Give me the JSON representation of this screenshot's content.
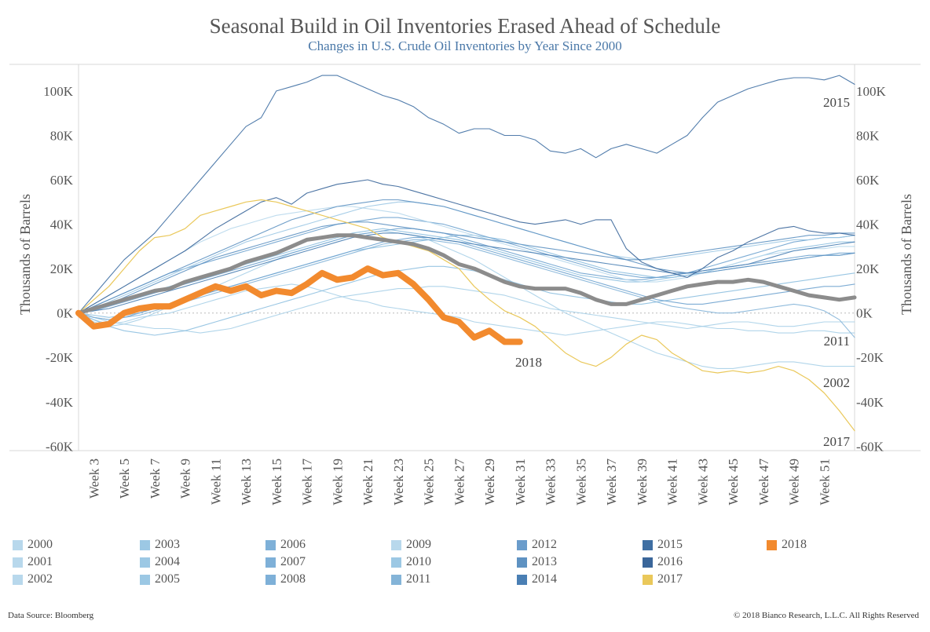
{
  "title": "Seasonal Build in Oil Inventories Erased Ahead of Schedule",
  "subtitle": "Changes in U.S. Crude Oil Inventories by Year Since 2000",
  "footer": {
    "source": "Data Source: Bloomberg",
    "copyright": "© 2018 Bianco Research, L.L.C. All Rights Reserved"
  },
  "chart_data": {
    "type": "line",
    "ylabel_left": "Thousands of Barrels",
    "ylabel_right": "Thousands of Barrels",
    "ylim": [
      -62,
      112
    ],
    "y_ticks": [
      100,
      80,
      60,
      40,
      20,
      0,
      -20,
      -40,
      -60
    ],
    "y_tick_labels": [
      "100K",
      "80K",
      "60K",
      "40K",
      "20K",
      "0K",
      "-20K",
      "-40K",
      "-60K"
    ],
    "xlim": [
      2,
      53
    ],
    "x_ticks": [
      3,
      5,
      7,
      9,
      11,
      13,
      15,
      17,
      19,
      21,
      23,
      25,
      27,
      29,
      31,
      33,
      35,
      37,
      39,
      41,
      43,
      45,
      47,
      49,
      51
    ],
    "x_tick_labels": [
      "Week 3",
      "Week 5",
      "Week 7",
      "Week 9",
      "Week 11",
      "Week 13",
      "Week 15",
      "Week 17",
      "Week 19",
      "Week 21",
      "Week 23",
      "Week 25",
      "Week 27",
      "Week 29",
      "Week 31",
      "Week 33",
      "Week 35",
      "Week 37",
      "Week 39",
      "Week 41",
      "Week 43",
      "Week 45",
      "Week 47",
      "Week 49",
      "Week 51"
    ],
    "grid": false,
    "zero_line": true,
    "series": [
      {
        "name": "2000",
        "color": "#a8d0e8",
        "start": 2,
        "values": [
          0,
          -3,
          -5,
          -4,
          -2,
          -1,
          0,
          2,
          4,
          6,
          8,
          10,
          11,
          12,
          13,
          12,
          10,
          8,
          6,
          5,
          3,
          2,
          1,
          0,
          -1,
          -2,
          -4,
          -5,
          -6,
          -7,
          -8,
          -9,
          -10,
          -9,
          -8,
          -7,
          -6,
          -5,
          -4,
          -4,
          -5,
          -6,
          -7,
          -7,
          -8,
          -8,
          -9,
          -9,
          -8,
          -8,
          -9,
          -9
        ]
      },
      {
        "name": "2001",
        "color": "#a8d0e8",
        "start": 2,
        "values": [
          0,
          -2,
          -4,
          -5,
          -6,
          -7,
          -7,
          -8,
          -9,
          -8,
          -7,
          -5,
          -3,
          -1,
          1,
          3,
          5,
          7,
          8,
          9,
          10,
          11,
          11,
          12,
          12,
          11,
          10,
          9,
          8,
          6,
          4,
          2,
          1,
          0,
          -1,
          -2,
          -3,
          -4,
          -5,
          -6,
          -7,
          -6,
          -5,
          -4,
          -4,
          -5,
          -6,
          -6,
          -5,
          -4,
          -4,
          -4
        ]
      },
      {
        "name": "2002",
        "color": "#a8d0e8",
        "start": 2,
        "values": [
          0,
          -4,
          -6,
          -5,
          -3,
          0,
          3,
          6,
          9,
          12,
          15,
          18,
          21,
          24,
          27,
          29,
          31,
          33,
          35,
          36,
          37,
          36,
          35,
          33,
          30,
          27,
          24,
          20,
          16,
          12,
          8,
          4,
          0,
          -3,
          -6,
          -9,
          -12,
          -15,
          -18,
          -20,
          -22,
          -24,
          -25,
          -25,
          -24,
          -23,
          -22,
          -22,
          -23,
          -24,
          -24,
          -24
        ]
      },
      {
        "name": "2003",
        "color": "#8ec0e0",
        "start": 2,
        "values": [
          0,
          -3,
          -6,
          -8,
          -9,
          -10,
          -9,
          -8,
          -6,
          -4,
          -2,
          0,
          2,
          4,
          6,
          8,
          10,
          12,
          14,
          16,
          18,
          19,
          20,
          21,
          21,
          20,
          19,
          17,
          15,
          13,
          11,
          9,
          8,
          7,
          6,
          5,
          4,
          4,
          5,
          6,
          7,
          8,
          9,
          10,
          11,
          12,
          13,
          14,
          15,
          16,
          17,
          18
        ]
      },
      {
        "name": "2004",
        "color": "#8ec0e0",
        "start": 2,
        "values": [
          0,
          -1,
          -2,
          -1,
          0,
          2,
          4,
          6,
          8,
          10,
          12,
          14,
          16,
          18,
          20,
          22,
          24,
          26,
          28,
          29,
          30,
          31,
          32,
          33,
          34,
          35,
          35,
          34,
          33,
          31,
          29,
          27,
          25,
          23,
          21,
          19,
          18,
          17,
          16,
          16,
          17,
          18,
          20,
          22,
          24,
          26,
          28,
          29,
          30,
          31,
          32,
          32
        ]
      },
      {
        "name": "2005",
        "color": "#8ec0e0",
        "start": 2,
        "values": [
          0,
          2,
          4,
          6,
          8,
          10,
          12,
          14,
          16,
          18,
          20,
          22,
          24,
          26,
          28,
          30,
          32,
          34,
          36,
          37,
          38,
          37,
          36,
          35,
          34,
          33,
          31,
          29,
          27,
          25,
          23,
          21,
          19,
          17,
          16,
          15,
          14,
          14,
          15,
          16,
          17,
          18,
          19,
          20,
          21,
          22,
          23,
          24,
          25,
          26,
          26,
          27
        ]
      },
      {
        "name": "2006",
        "color": "#6fa3cf",
        "start": 2,
        "values": [
          0,
          3,
          6,
          9,
          12,
          15,
          18,
          20,
          22,
          24,
          26,
          28,
          30,
          32,
          34,
          36,
          38,
          40,
          41,
          42,
          43,
          43,
          42,
          41,
          40,
          38,
          36,
          34,
          32,
          30,
          28,
          26,
          24,
          22,
          20,
          18,
          17,
          16,
          16,
          17,
          18,
          19,
          20,
          21,
          22,
          23,
          24,
          25,
          26,
          26,
          27,
          27
        ]
      },
      {
        "name": "2007",
        "color": "#6fa3cf",
        "start": 2,
        "values": [
          0,
          1,
          3,
          5,
          7,
          9,
          11,
          13,
          15,
          17,
          19,
          21,
          23,
          25,
          27,
          29,
          31,
          33,
          35,
          36,
          37,
          38,
          38,
          37,
          36,
          34,
          32,
          30,
          28,
          26,
          24,
          22,
          20,
          18,
          17,
          16,
          15,
          15,
          16,
          17,
          18,
          20,
          22,
          24,
          26,
          28,
          30,
          32,
          33,
          34,
          34,
          35
        ]
      },
      {
        "name": "2008",
        "color": "#6fa3cf",
        "start": 2,
        "values": [
          0,
          -2,
          -3,
          -2,
          0,
          2,
          4,
          6,
          8,
          10,
          12,
          14,
          16,
          18,
          20,
          22,
          24,
          26,
          28,
          30,
          32,
          33,
          34,
          34,
          33,
          32,
          30,
          28,
          26,
          24,
          22,
          20,
          18,
          16,
          14,
          12,
          10,
          8,
          6,
          5,
          4,
          4,
          5,
          6,
          7,
          8,
          9,
          10,
          11,
          12,
          12,
          13
        ]
      },
      {
        "name": "2009",
        "color": "#b8d8ec",
        "start": 2,
        "values": [
          0,
          4,
          8,
          12,
          16,
          20,
          24,
          28,
          32,
          35,
          38,
          40,
          42,
          44,
          45,
          46,
          47,
          48,
          48,
          47,
          46,
          45,
          43,
          41,
          39,
          37,
          35,
          33,
          31,
          29,
          27,
          25,
          23,
          21,
          19,
          17,
          15,
          14,
          14,
          15,
          16,
          18,
          20,
          22,
          24,
          26,
          27,
          28,
          29,
          29,
          30,
          30
        ]
      },
      {
        "name": "2010",
        "color": "#9cc8e4",
        "start": 2,
        "values": [
          0,
          2,
          5,
          8,
          11,
          14,
          17,
          20,
          23,
          26,
          29,
          32,
          34,
          36,
          38,
          40,
          42,
          44,
          46,
          48,
          49,
          50,
          50,
          49,
          48,
          46,
          44,
          42,
          40,
          38,
          36,
          34,
          32,
          30,
          28,
          26,
          25,
          24,
          24,
          25,
          26,
          27,
          28,
          29,
          30,
          31,
          32,
          33,
          33,
          34,
          34,
          35
        ]
      },
      {
        "name": "2011",
        "color": "#84b4d8",
        "start": 2,
        "values": [
          0,
          -2,
          -3,
          -2,
          -1,
          1,
          3,
          5,
          7,
          9,
          11,
          13,
          15,
          17,
          19,
          21,
          23,
          25,
          27,
          29,
          31,
          32,
          33,
          33,
          32,
          31,
          29,
          27,
          25,
          23,
          21,
          19,
          17,
          15,
          13,
          11,
          9,
          7,
          5,
          3,
          2,
          1,
          0,
          0,
          1,
          2,
          3,
          4,
          3,
          1,
          -3,
          -11
        ]
      },
      {
        "name": "2012",
        "color": "#5e92c2",
        "start": 2,
        "values": [
          0,
          3,
          6,
          9,
          12,
          15,
          18,
          21,
          24,
          27,
          30,
          33,
          36,
          39,
          42,
          44,
          46,
          48,
          49,
          50,
          51,
          51,
          50,
          49,
          48,
          46,
          44,
          42,
          40,
          38,
          36,
          34,
          32,
          30,
          28,
          26,
          24,
          22,
          20,
          19,
          18,
          18,
          19,
          20,
          21,
          22,
          23,
          24,
          25,
          26,
          26,
          27
        ]
      },
      {
        "name": "2013",
        "color": "#5e92c2",
        "start": 2,
        "values": [
          0,
          2,
          4,
          7,
          10,
          13,
          16,
          19,
          22,
          25,
          27,
          29,
          31,
          33,
          35,
          37,
          39,
          40,
          41,
          41,
          40,
          39,
          38,
          37,
          36,
          35,
          34,
          33,
          32,
          31,
          30,
          29,
          28,
          27,
          26,
          25,
          24,
          24,
          25,
          26,
          27,
          28,
          29,
          30,
          31,
          32,
          33,
          34,
          35,
          35,
          36,
          36
        ]
      },
      {
        "name": "2014",
        "color": "#4a7fb4",
        "start": 2,
        "values": [
          0,
          1,
          2,
          4,
          6,
          8,
          10,
          12,
          14,
          16,
          18,
          20,
          22,
          24,
          26,
          28,
          30,
          32,
          34,
          35,
          36,
          36,
          35,
          34,
          33,
          32,
          31,
          30,
          29,
          28,
          27,
          26,
          25,
          24,
          23,
          22,
          21,
          20,
          19,
          18,
          18,
          19,
          20,
          21,
          22,
          24,
          26,
          28,
          29,
          30,
          31,
          32
        ]
      },
      {
        "name": "2015",
        "color": "#3f6fa3",
        "start": 2,
        "values": [
          0,
          8,
          16,
          24,
          30,
          36,
          44,
          52,
          60,
          68,
          76,
          84,
          88,
          100,
          102,
          104,
          107,
          107,
          104,
          101,
          98,
          96,
          93,
          88,
          85,
          81,
          83,
          83,
          80,
          80,
          78,
          73,
          72,
          74,
          70,
          74,
          76,
          74,
          72,
          76,
          80,
          88,
          95,
          98,
          101,
          103,
          105,
          106,
          106,
          105,
          107,
          103
        ]
      },
      {
        "name": "2016",
        "color": "#3a669a",
        "start": 2,
        "values": [
          0,
          4,
          8,
          12,
          16,
          20,
          24,
          28,
          33,
          38,
          42,
          46,
          50,
          52,
          49,
          54,
          56,
          58,
          59,
          60,
          58,
          57,
          55,
          53,
          51,
          49,
          47,
          45,
          43,
          41,
          40,
          41,
          42,
          40,
          42,
          42,
          29,
          23,
          20,
          18,
          16,
          20,
          25,
          28,
          32,
          35,
          38,
          39,
          37,
          36,
          36,
          35
        ]
      },
      {
        "name": "2017",
        "color": "#eac85a",
        "start": 2,
        "values": [
          0,
          6,
          12,
          20,
          28,
          34,
          35,
          38,
          44,
          46,
          48,
          50,
          51,
          50,
          48,
          46,
          44,
          42,
          40,
          38,
          34,
          32,
          30,
          28,
          24,
          20,
          12,
          6,
          1,
          -2,
          -6,
          -12,
          -18,
          -22,
          -24,
          -20,
          -14,
          -10,
          -12,
          -18,
          -22,
          -26,
          -27,
          -26,
          -27,
          -26,
          -24,
          -26,
          -30,
          -36,
          -44,
          -53
        ]
      },
      {
        "name": "2018",
        "color": "#f28a2e",
        "start": 2,
        "values": [
          0,
          -6,
          -5,
          0,
          2,
          3,
          3,
          6,
          9,
          12,
          10,
          12,
          8,
          10,
          9,
          13,
          18,
          15,
          16,
          20,
          17,
          18,
          13,
          6,
          -2,
          -4,
          -11,
          -8,
          -13,
          -13
        ]
      },
      {
        "name": "average",
        "color": "#8c8c8c",
        "start": 2,
        "values": [
          0,
          2,
          4,
          6,
          8,
          10,
          11,
          14,
          16,
          18,
          20,
          23,
          25,
          27,
          30,
          33,
          34,
          35,
          35,
          34,
          33,
          32,
          31,
          29,
          26,
          22,
          20,
          17,
          14,
          12,
          11,
          11,
          11,
          9,
          6,
          4,
          4,
          6,
          8,
          10,
          12,
          13,
          14,
          14,
          15,
          14,
          12,
          10,
          8,
          7,
          6,
          7
        ]
      }
    ],
    "end_labels": {
      "2015": "2015",
      "2011": "2011",
      "2002": "2002",
      "2017": "2017",
      "2018": "2018"
    }
  },
  "legend": {
    "columns": [
      [
        {
          "year": "2000",
          "color": "#b8d8ec"
        },
        {
          "year": "2001",
          "color": "#b8d8ec"
        },
        {
          "year": "2002",
          "color": "#b8d8ec"
        }
      ],
      [
        {
          "year": "2003",
          "color": "#9cc8e4"
        },
        {
          "year": "2004",
          "color": "#9cc8e4"
        },
        {
          "year": "2005",
          "color": "#9cc8e4"
        }
      ],
      [
        {
          "year": "2006",
          "color": "#7eb0d8"
        },
        {
          "year": "2007",
          "color": "#7eb0d8"
        },
        {
          "year": "2008",
          "color": "#7eb0d8"
        }
      ],
      [
        {
          "year": "2009",
          "color": "#b8d8ec"
        },
        {
          "year": "2010",
          "color": "#9cc8e4"
        },
        {
          "year": "2011",
          "color": "#84b4d8"
        }
      ],
      [
        {
          "year": "2012",
          "color": "#6a9ccb"
        },
        {
          "year": "2013",
          "color": "#5e92c2"
        },
        {
          "year": "2014",
          "color": "#4a7fb4"
        }
      ],
      [
        {
          "year": "2015",
          "color": "#3f6fa3"
        },
        {
          "year": "2016",
          "color": "#3a669a"
        },
        {
          "year": "2017",
          "color": "#eac85a"
        }
      ],
      [
        {
          "year": "2018",
          "color": "#f28a2e"
        }
      ]
    ]
  }
}
